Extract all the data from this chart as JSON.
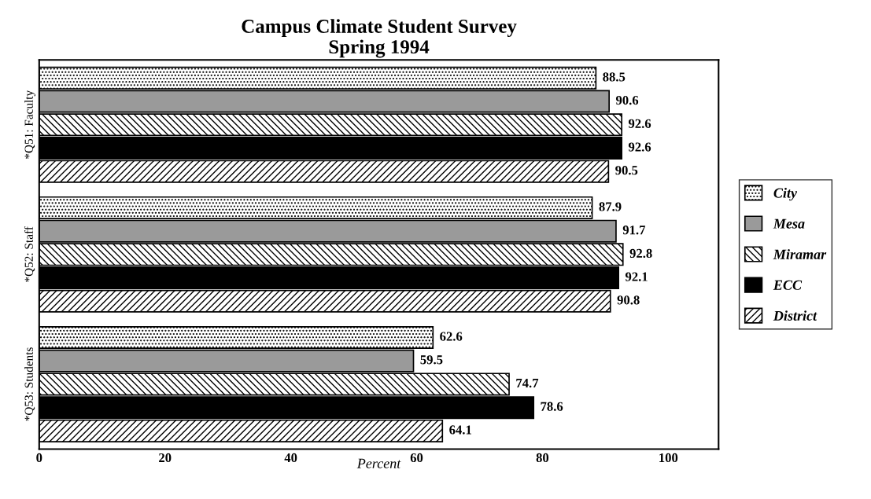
{
  "chart_data": {
    "type": "bar",
    "orientation": "horizontal",
    "title": "Campus Climate Student Survey\nSpring 1994",
    "xlabel": "Percent",
    "categories": [
      "*Q51: Faculty",
      "*Q52: Staff",
      "*Q53: Students"
    ],
    "series": [
      {
        "name": "City",
        "color": "#000000",
        "values": [
          88.5,
          87.9,
          62.6
        ]
      },
      {
        "name": "Mesa",
        "color": "#9a9a9a",
        "values": [
          90.6,
          91.7,
          59.5
        ]
      },
      {
        "name": "Miramar",
        "color": "#000000",
        "values": [
          92.6,
          92.8,
          74.7
        ]
      },
      {
        "name": "ECC",
        "color": "#000000",
        "values": [
          92.6,
          92.1,
          78.6
        ]
      },
      {
        "name": "District",
        "color": "#000000",
        "values": [
          90.5,
          90.8,
          64.1
        ]
      }
    ],
    "xlim": [
      0,
      108
    ],
    "xticks": [
      0,
      20,
      40,
      60,
      80,
      100
    ],
    "data_labels": true,
    "legend": "right",
    "grid": false
  }
}
